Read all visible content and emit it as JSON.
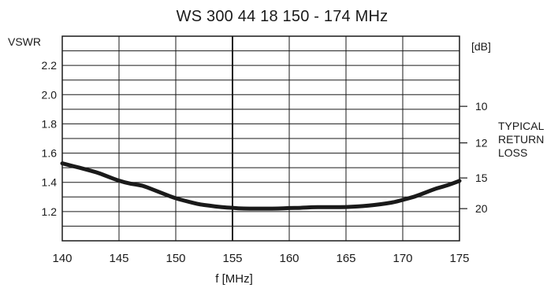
{
  "chart_data": {
    "type": "line",
    "title": "WS 300 44 18  150 - 174 MHz",
    "xlabel": "f [MHz]",
    "ylabel": "VSWR",
    "y2label": "[dB]",
    "y2_caption": [
      "TYPICAL",
      "RETURN",
      "LOSS"
    ],
    "xlim": [
      140,
      175
    ],
    "ylim": [
      1.0,
      2.4
    ],
    "x_ticks": [
      140,
      145,
      150,
      155,
      160,
      165,
      170,
      175
    ],
    "x_ticklabels": [
      "140",
      "145",
      "150",
      "155",
      "160",
      "165",
      "170",
      "175"
    ],
    "y_ticks": [
      1.2,
      1.4,
      1.6,
      1.8,
      2.0,
      2.2
    ],
    "y_ticklabels": [
      "1.2",
      "1.4",
      "1.6",
      "1.8",
      "2.0",
      "2.2"
    ],
    "y2_ticks": [
      {
        "label": "10",
        "vswr": 1.92
      },
      {
        "label": "12",
        "vswr": 1.67
      },
      {
        "label": "15",
        "vswr": 1.43
      },
      {
        "label": "20",
        "vswr": 1.22
      }
    ],
    "grid": true,
    "highlight_x": 155,
    "series": [
      {
        "x": [
          140,
          141,
          142,
          143,
          144,
          145,
          146,
          147,
          148,
          149,
          150,
          151,
          152,
          153,
          154,
          155,
          156,
          157,
          158,
          159,
          160,
          161,
          162,
          163,
          164,
          165,
          166,
          167,
          168,
          169,
          170,
          171,
          172,
          173,
          174,
          175
        ],
        "y": [
          1.53,
          1.51,
          1.49,
          1.47,
          1.44,
          1.41,
          1.39,
          1.38,
          1.35,
          1.32,
          1.29,
          1.27,
          1.25,
          1.24,
          1.23,
          1.225,
          1.22,
          1.22,
          1.22,
          1.22,
          1.225,
          1.225,
          1.23,
          1.23,
          1.23,
          1.23,
          1.235,
          1.24,
          1.25,
          1.26,
          1.28,
          1.3,
          1.33,
          1.36,
          1.38,
          1.41
        ]
      }
    ]
  }
}
